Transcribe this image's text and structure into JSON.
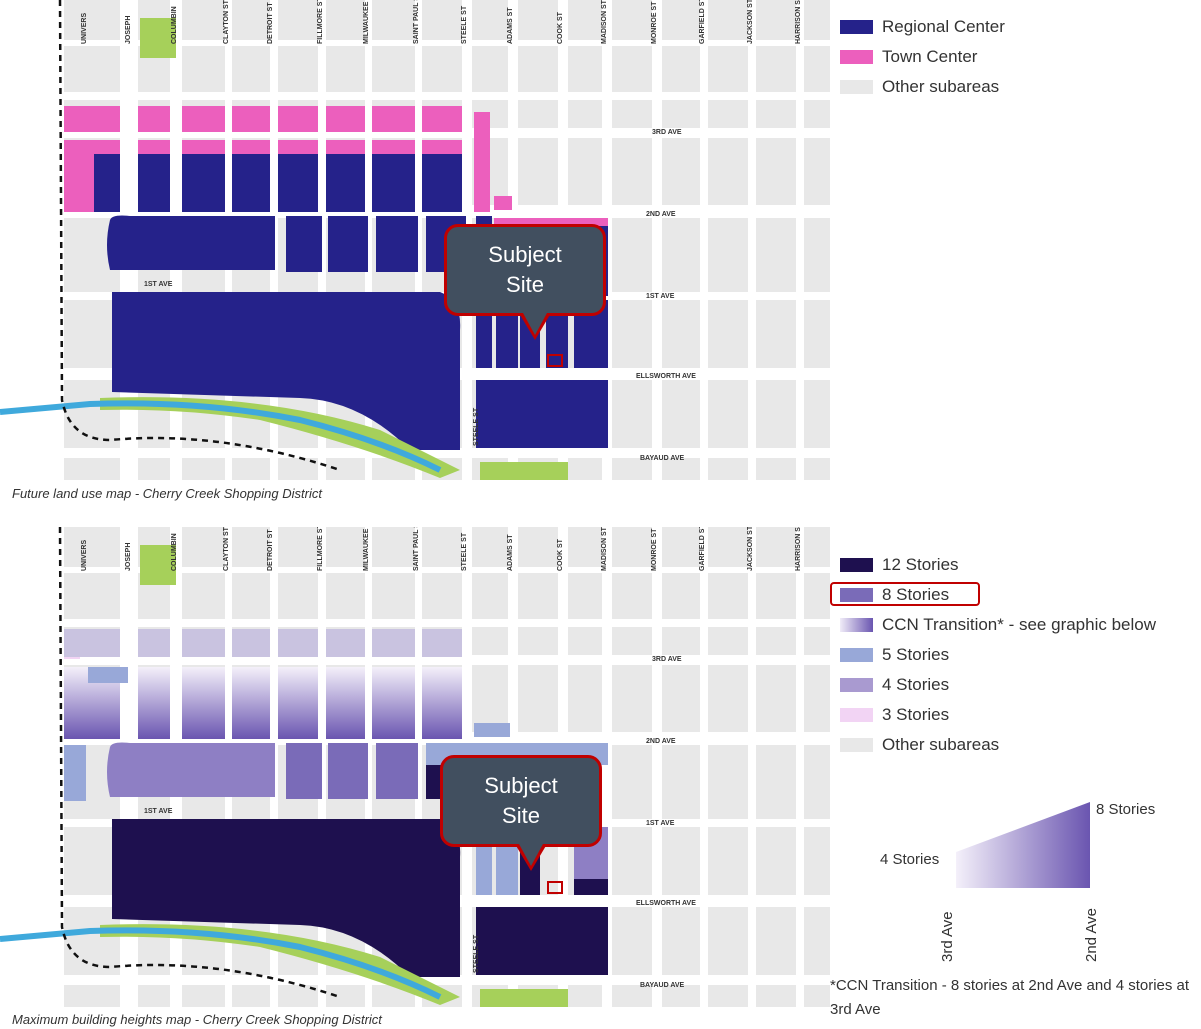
{
  "map1": {
    "caption": "Future land use map - Cherry Creek Shopping District",
    "streets": [
      "UNIVERS",
      "JOSEPH",
      "COLUMBIN",
      "CLAYTON ST",
      "DETROIT ST",
      "FILLMORE ST",
      "MILWAUKEE ST",
      "SAINT PAUL ST",
      "STEELE ST",
      "ADAMS ST",
      "COOK ST",
      "MADISON ST",
      "MONROE ST",
      "GARFIELD ST",
      "JACKSON ST",
      "HARRISON ST"
    ],
    "avenues": {
      "third": "3RD AVE",
      "second": "2ND AVE",
      "first_left": "1ST AVE",
      "first_right": "1ST AVE",
      "ellsworth": "ELLSWORTH AVE",
      "bayaud": "BAYAUD AVE",
      "steele": "STEELE ST"
    },
    "callout": [
      "Subject",
      "Site"
    ],
    "legend": [
      {
        "label": "Regional Center",
        "color": "#25228a"
      },
      {
        "label": "Town Center",
        "color": "#ec5fbd"
      },
      {
        "label": "Other subareas",
        "color": "#e8e8e8"
      }
    ]
  },
  "map2": {
    "caption": "Maximum building heights map - Cherry Creek Shopping District",
    "streets": [
      "UNIVERS",
      "JOSEPH",
      "COLUMBIN",
      "CLAYTON ST",
      "DETROIT ST",
      "FILLMORE ST",
      "MILWAUKEE ST",
      "SAINT PAUL ST",
      "STEELE ST",
      "ADAMS ST",
      "COOK ST",
      "MADISON ST",
      "MONROE ST",
      "GARFIELD ST",
      "JACKSON ST",
      "HARRISON ST"
    ],
    "avenues": {
      "third": "3RD AVE",
      "second": "2ND AVE",
      "first_left": "1ST AVE",
      "first_right": "1ST AVE",
      "ellsworth": "ELLSWORTH AVE",
      "bayaud": "BAYAUD AVE",
      "steele": "STEELE ST"
    },
    "callout": [
      "Subject",
      "Site"
    ],
    "legend": [
      {
        "label": "12 Stories",
        "color": "#1e104f"
      },
      {
        "label": "8 Stories",
        "color": "#7a6bb8",
        "highlighted": true
      },
      {
        "label": "CCN Transition* - see graphic below",
        "color": "gradient"
      },
      {
        "label": "5 Stories",
        "color": "#98a8d8"
      },
      {
        "label": "4 Stories",
        "color": "#a99ad0"
      },
      {
        "label": "3 Stories",
        "color": "#f2d4f4"
      },
      {
        "label": "Other subareas",
        "color": "#e8e8e8"
      }
    ]
  },
  "transition": {
    "top_right": "8 Stories",
    "left": "4 Stories",
    "axis_left": "3rd Ave",
    "axis_right": "2nd Ave"
  },
  "footnote": "*CCN Transition - 8 stories at 2nd Ave and 4 stories at 3rd Ave"
}
